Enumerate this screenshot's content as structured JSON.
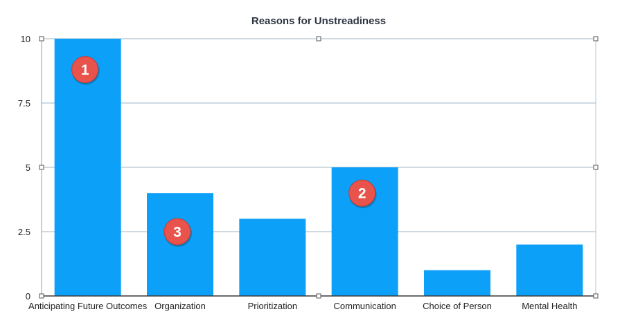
{
  "chart_data": {
    "type": "bar",
    "title": "Reasons for Unstreadiness",
    "xlabel": "",
    "ylabel": "",
    "categories": [
      "Anticipating Future Outcomes",
      "Organization",
      "Prioritization",
      "Communication",
      "Choice of Person",
      "Mental Health"
    ],
    "values": [
      10,
      4,
      3,
      5,
      1,
      2
    ],
    "ylim": [
      0,
      10
    ],
    "yticks": [
      0,
      2.5,
      5,
      7.5,
      10
    ],
    "ytick_labels": [
      "0",
      "2.5",
      "5",
      "7.5",
      "10"
    ],
    "grid": true,
    "legend": "none",
    "bar_color": "#0da0f8",
    "annotations": [
      {
        "label": "1",
        "category": "Anticipating Future Outcomes",
        "y": 8.8
      },
      {
        "label": "2",
        "category": "Communication",
        "y": 4.0
      },
      {
        "label": "3",
        "category": "Organization",
        "y": 2.5
      }
    ],
    "annotation_color": "#e8534c"
  }
}
